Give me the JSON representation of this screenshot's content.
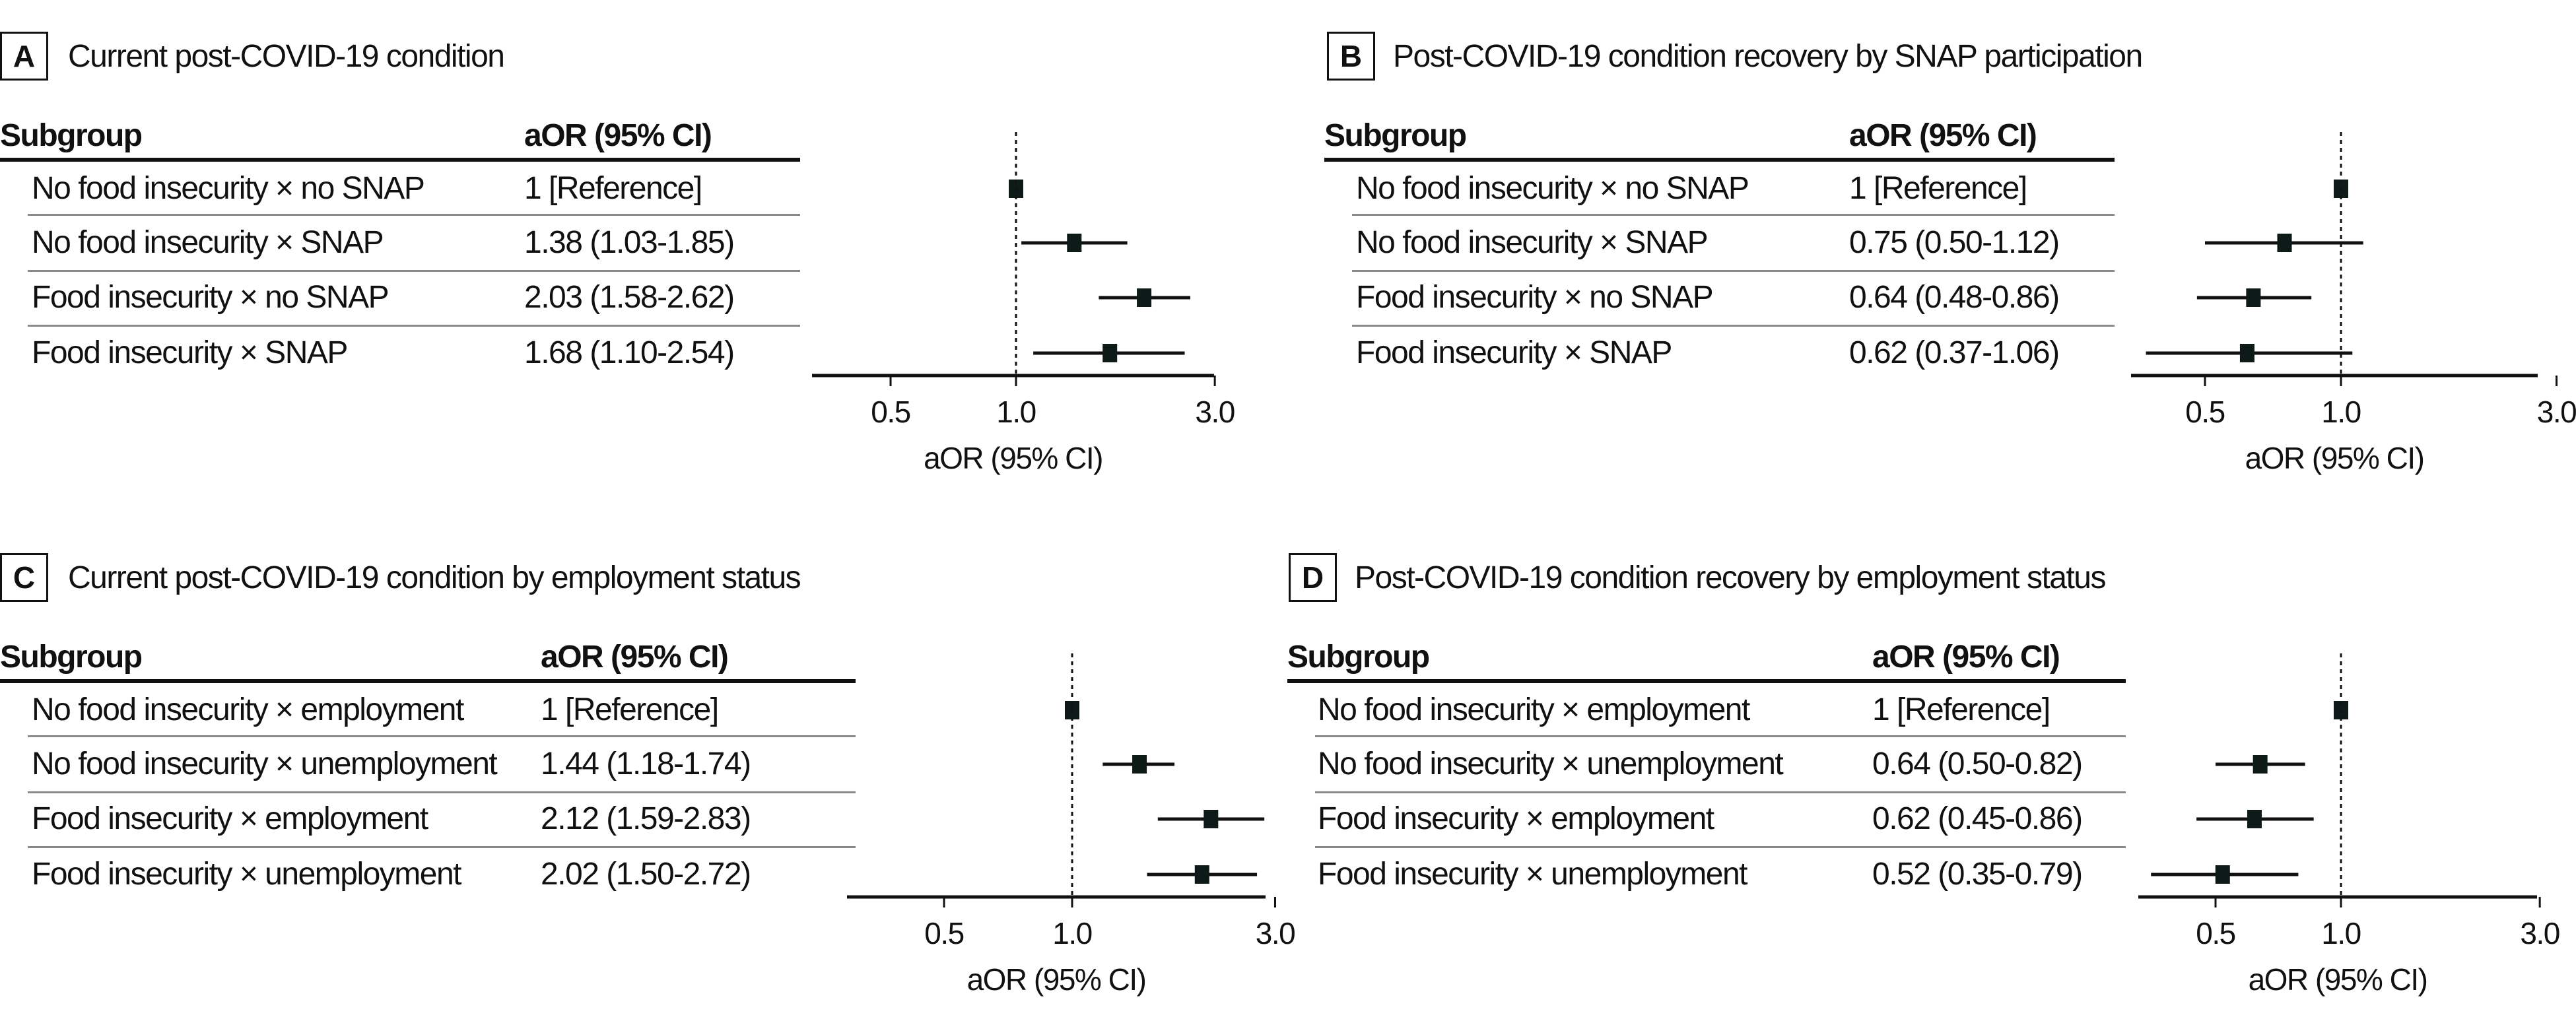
{
  "chart_data": [
    {
      "type": "forest",
      "panel_label": "A",
      "title": "Current post-COVID-19 condition",
      "columns": {
        "subgroup": "Subgroup",
        "estimate": "aOR (95% CI)"
      },
      "rows": [
        {
          "subgroup": "No food insecurity × no SNAP",
          "estimate_text": "1 [Reference]",
          "aor": 1,
          "lo": 1,
          "hi": 1
        },
        {
          "subgroup": "No food insecurity × SNAP",
          "estimate_text": "1.38 (1.03-1.85)",
          "aor": 1.38,
          "lo": 1.03,
          "hi": 1.85
        },
        {
          "subgroup": "Food insecurity × no SNAP",
          "estimate_text": "2.03 (1.58-2.62)",
          "aor": 2.03,
          "lo": 1.58,
          "hi": 2.62
        },
        {
          "subgroup": "Food insecurity × SNAP",
          "estimate_text": "1.68 (1.10-2.54)",
          "aor": 1.68,
          "lo": 1.1,
          "hi": 2.54
        }
      ],
      "xlabel": "aOR (95% CI)",
      "xscale": "log",
      "xticks": [
        "0.5",
        "1.0",
        "3.0"
      ],
      "reference_line": 1
    },
    {
      "type": "forest",
      "panel_label": "B",
      "title": "Post-COVID-19 condition recovery by SNAP participation",
      "columns": {
        "subgroup": "Subgroup",
        "estimate": "aOR (95% CI)"
      },
      "rows": [
        {
          "subgroup": "No food insecurity × no SNAP",
          "estimate_text": "1 [Reference]",
          "aor": 1,
          "lo": 1,
          "hi": 1
        },
        {
          "subgroup": "No food insecurity × SNAP",
          "estimate_text": "0.75 (0.50-1.12)",
          "aor": 0.75,
          "lo": 0.5,
          "hi": 1.12
        },
        {
          "subgroup": "Food insecurity × no SNAP",
          "estimate_text": "0.64 (0.48-0.86)",
          "aor": 0.64,
          "lo": 0.48,
          "hi": 0.86
        },
        {
          "subgroup": "Food insecurity × SNAP",
          "estimate_text": "0.62 (0.37-1.06)",
          "aor": 0.62,
          "lo": 0.37,
          "hi": 1.06
        }
      ],
      "xlabel": "aOR (95% CI)",
      "xscale": "log",
      "xticks": [
        "0.5",
        "1.0",
        "3.0"
      ],
      "reference_line": 1
    },
    {
      "type": "forest",
      "panel_label": "C",
      "title": "Current post-COVID-19 condition by employment status",
      "columns": {
        "subgroup": "Subgroup",
        "estimate": "aOR (95% CI)"
      },
      "rows": [
        {
          "subgroup": "No food insecurity × employment",
          "estimate_text": "1 [Reference]",
          "aor": 1,
          "lo": 1,
          "hi": 1
        },
        {
          "subgroup": "No food insecurity × unemployment",
          "estimate_text": "1.44 (1.18-1.74)",
          "aor": 1.44,
          "lo": 1.18,
          "hi": 1.74
        },
        {
          "subgroup": "Food insecurity × employment",
          "estimate_text": "2.12 (1.59-2.83)",
          "aor": 2.12,
          "lo": 1.59,
          "hi": 2.83
        },
        {
          "subgroup": "Food insecurity × unemployment",
          "estimate_text": "2.02 (1.50-2.72)",
          "aor": 2.02,
          "lo": 1.5,
          "hi": 2.72
        }
      ],
      "xlabel": "aOR (95% CI)",
      "xscale": "log",
      "xticks": [
        "0.5",
        "1.0",
        "3.0"
      ],
      "reference_line": 1
    },
    {
      "type": "forest",
      "panel_label": "D",
      "title": "Post-COVID-19 condition recovery by employment status",
      "columns": {
        "subgroup": "Subgroup",
        "estimate": "aOR (95% CI)"
      },
      "rows": [
        {
          "subgroup": "No food insecurity × employment",
          "estimate_text": "1 [Reference]",
          "aor": 1,
          "lo": 1,
          "hi": 1
        },
        {
          "subgroup": "No food insecurity × unemployment",
          "estimate_text": "0.64 (0.50-0.82)",
          "aor": 0.64,
          "lo": 0.5,
          "hi": 0.82
        },
        {
          "subgroup": "Food insecurity × employment",
          "estimate_text": "0.62 (0.45-0.86)",
          "aor": 0.62,
          "lo": 0.45,
          "hi": 0.86
        },
        {
          "subgroup": "Food insecurity × unemployment",
          "estimate_text": "0.52 (0.35-0.79)",
          "aor": 0.52,
          "lo": 0.35,
          "hi": 0.79
        }
      ],
      "xlabel": "aOR (95% CI)",
      "xscale": "log",
      "xticks": [
        "0.5",
        "1.0",
        "3.0"
      ],
      "reference_line": 1
    }
  ]
}
